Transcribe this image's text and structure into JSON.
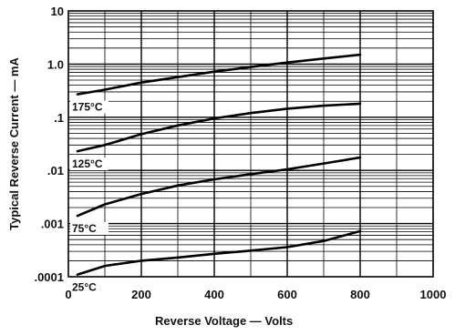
{
  "chart_data": {
    "type": "line",
    "title": "",
    "xlabel": "Reverse Voltage — Volts",
    "ylabel": "Typical Reverse Current — mA",
    "xlim": [
      0,
      1000
    ],
    "ylim": [
      0.0001,
      10
    ],
    "y_scale": "log",
    "grid": true,
    "x_ticks": [
      0,
      200,
      400,
      600,
      800,
      1000
    ],
    "x_tick_labels": [
      "0",
      "200",
      "400",
      "600",
      "800",
      "1000"
    ],
    "y_ticks": [
      0.0001,
      0.001,
      0.01,
      0.1,
      1,
      10
    ],
    "y_tick_labels": [
      ".0001",
      ".001",
      ".01",
      ".1",
      "1.0",
      "10"
    ],
    "series": [
      {
        "name": "175°C",
        "x": [
          25,
          100,
          200,
          300,
          400,
          500,
          600,
          700,
          800
        ],
        "y": [
          0.27,
          0.33,
          0.45,
          0.57,
          0.72,
          0.88,
          1.07,
          1.27,
          1.5
        ]
      },
      {
        "name": "125°C",
        "x": [
          25,
          100,
          200,
          300,
          400,
          500,
          600,
          700,
          800
        ],
        "y": [
          0.023,
          0.03,
          0.048,
          0.07,
          0.095,
          0.12,
          0.145,
          0.165,
          0.18
        ]
      },
      {
        "name": "75°C",
        "x": [
          25,
          100,
          200,
          300,
          400,
          500,
          600,
          700,
          800
        ],
        "y": [
          0.0014,
          0.0023,
          0.0036,
          0.0052,
          0.0068,
          0.0085,
          0.0105,
          0.0135,
          0.0175
        ]
      },
      {
        "name": "25°C",
        "x": [
          25,
          100,
          200,
          300,
          400,
          500,
          600,
          700,
          800
        ],
        "y": [
          0.00011,
          0.00016,
          0.0002,
          0.00023,
          0.00027,
          0.00031,
          0.00036,
          0.00047,
          0.00072
        ]
      }
    ]
  }
}
